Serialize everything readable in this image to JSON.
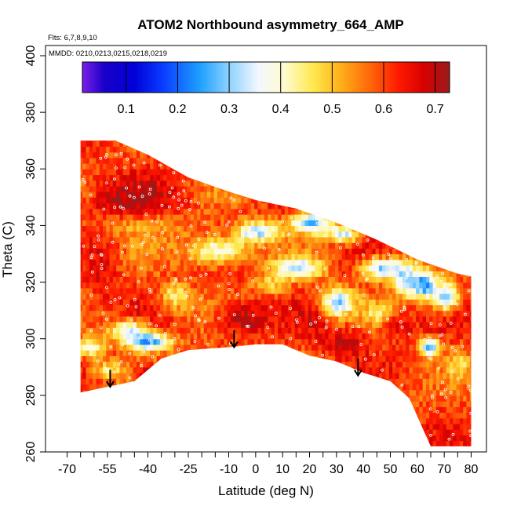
{
  "chart_data": {
    "type": "heatmap",
    "title": "ATOM2 Northbound asymmetry_664_AMP",
    "flights_note": "Flts: 6,7,8,9,10",
    "dates_note": "MMDD: 0210,0213,0215,0218,0219",
    "xlabel": "Latitude (deg N)",
    "ylabel": "Theta (C)",
    "xlim": [
      -70,
      82
    ],
    "ylim": [
      260,
      403
    ],
    "x_tick_labels": [
      "-70",
      "-55",
      "-40",
      "-25",
      "-10",
      "0",
      "10",
      "20",
      "30",
      "40",
      "50",
      "60",
      "70",
      "80"
    ],
    "x_tick_values": [
      -70,
      -55,
      -40,
      -25,
      -10,
      0,
      10,
      20,
      30,
      40,
      50,
      60,
      70,
      80
    ],
    "x_minor_ticks": [
      -65,
      -60,
      -50,
      -45,
      -35,
      -30,
      -20,
      -15,
      -5,
      5,
      15,
      25,
      35,
      45,
      55,
      65,
      75
    ],
    "y_tick_values": [
      260,
      280,
      300,
      320,
      340,
      360,
      380,
      400
    ],
    "y_tick_labels": [
      "260",
      "280",
      "300",
      "320",
      "340",
      "360",
      "380",
      "400"
    ],
    "colorbar": {
      "min": 0.015,
      "max": 0.728,
      "tick_values": [
        0.1,
        0.2,
        0.3,
        0.4,
        0.5,
        0.6,
        0.7
      ],
      "tick_labels": [
        "0.1",
        "0.2",
        "0.3",
        "0.4",
        "0.5",
        "0.6",
        "0.7"
      ],
      "stops": [
        [
          0.0,
          "#7b1fe8"
        ],
        [
          0.06,
          "#1a00c8"
        ],
        [
          0.14,
          "#0000d8"
        ],
        [
          0.22,
          "#0a3cff"
        ],
        [
          0.32,
          "#1ea0ff"
        ],
        [
          0.4,
          "#8ed2ff"
        ],
        [
          0.48,
          "#f4f8ff"
        ],
        [
          0.55,
          "#fffbd0"
        ],
        [
          0.63,
          "#ffe84d"
        ],
        [
          0.7,
          "#ffb21a"
        ],
        [
          0.78,
          "#ff6a0a"
        ],
        [
          0.86,
          "#ff1a00"
        ],
        [
          0.93,
          "#d70000"
        ],
        [
          1.0,
          "#9a1b1b"
        ]
      ]
    },
    "data_region": {
      "top_boundary": [
        [
          -65,
          370
        ],
        [
          -52,
          370
        ],
        [
          -40,
          365
        ],
        [
          -25,
          357
        ],
        [
          -10,
          352
        ],
        [
          0,
          349
        ],
        [
          15,
          346
        ],
        [
          30,
          341
        ],
        [
          45,
          335
        ],
        [
          60,
          328
        ],
        [
          75,
          323
        ],
        [
          80,
          322
        ]
      ],
      "bottom_boundary": [
        [
          -65,
          305
        ],
        [
          -65,
          281
        ],
        [
          -55,
          283
        ],
        [
          -45,
          285
        ],
        [
          -35,
          293
        ],
        [
          -25,
          296
        ],
        [
          -10,
          297
        ],
        [
          0,
          298
        ],
        [
          10,
          298
        ],
        [
          20,
          294
        ],
        [
          30,
          292
        ],
        [
          40,
          288
        ],
        [
          50,
          285
        ],
        [
          57,
          279
        ],
        [
          65,
          262
        ],
        [
          80,
          262
        ],
        [
          80,
          322
        ]
      ]
    },
    "low_value_patches": [
      {
        "lat": -48,
        "theta": 302,
        "w": 12,
        "h": 6,
        "value": 0.35
      },
      {
        "lat": -40,
        "theta": 298,
        "w": 14,
        "h": 5,
        "value": 0.25
      },
      {
        "lat": -62,
        "theta": 296,
        "w": 8,
        "h": 6,
        "value": 0.4
      },
      {
        "lat": -55,
        "theta": 288,
        "w": 10,
        "h": 5,
        "value": 0.45
      },
      {
        "lat": -42,
        "theta": 339,
        "w": 30,
        "h": 8,
        "value": 0.5
      },
      {
        "lat": -15,
        "theta": 330,
        "w": 20,
        "h": 8,
        "value": 0.4
      },
      {
        "lat": 0,
        "theta": 337,
        "w": 14,
        "h": 6,
        "value": 0.32
      },
      {
        "lat": 15,
        "theta": 324,
        "w": 14,
        "h": 6,
        "value": 0.3
      },
      {
        "lat": 20,
        "theta": 340,
        "w": 12,
        "h": 6,
        "value": 0.28
      },
      {
        "lat": 32,
        "theta": 336,
        "w": 10,
        "h": 5,
        "value": 0.35
      },
      {
        "lat": 30,
        "theta": 312,
        "w": 10,
        "h": 8,
        "value": 0.3
      },
      {
        "lat": 46,
        "theta": 324,
        "w": 12,
        "h": 6,
        "value": 0.3
      },
      {
        "lat": 55,
        "theta": 320,
        "w": 8,
        "h": 10,
        "value": 0.33
      },
      {
        "lat": 62,
        "theta": 318,
        "w": 7,
        "h": 8,
        "value": 0.25
      },
      {
        "lat": 70,
        "theta": 314,
        "w": 8,
        "h": 8,
        "value": 0.3
      },
      {
        "lat": 64,
        "theta": 296,
        "w": 6,
        "h": 5,
        "value": 0.25
      },
      {
        "lat": 45,
        "theta": 308,
        "w": 8,
        "h": 6,
        "value": 0.4
      },
      {
        "lat": -30,
        "theta": 314,
        "w": 10,
        "h": 8,
        "value": 0.45
      },
      {
        "lat": 5,
        "theta": 318,
        "w": 10,
        "h": 6,
        "value": 0.48
      },
      {
        "lat": 75,
        "theta": 290,
        "w": 6,
        "h": 8,
        "value": 0.45
      }
    ],
    "high_value_patches": [
      {
        "lat": -45,
        "theta": 348,
        "w": 25,
        "h": 12,
        "value": 0.72
      },
      {
        "lat": -58,
        "theta": 326,
        "w": 10,
        "h": 24,
        "value": 0.66
      },
      {
        "lat": -5,
        "theta": 306,
        "w": 16,
        "h": 10,
        "value": 0.7
      },
      {
        "lat": 32,
        "theta": 298,
        "w": 16,
        "h": 8,
        "value": 0.68
      },
      {
        "lat": 52,
        "theta": 304,
        "w": 12,
        "h": 8,
        "value": 0.66
      },
      {
        "lat": -40,
        "theta": 287,
        "w": 10,
        "h": 5,
        "value": 0.7
      },
      {
        "lat": 20,
        "theta": 306,
        "w": 10,
        "h": 8,
        "value": 0.68
      }
    ],
    "arrows": [
      {
        "lat": -54,
        "theta_from": 289,
        "theta_to": 283
      },
      {
        "lat": -8,
        "theta_from": 303,
        "theta_to": 297
      },
      {
        "lat": 38,
        "theta_from": 293,
        "theta_to": 287
      }
    ]
  }
}
